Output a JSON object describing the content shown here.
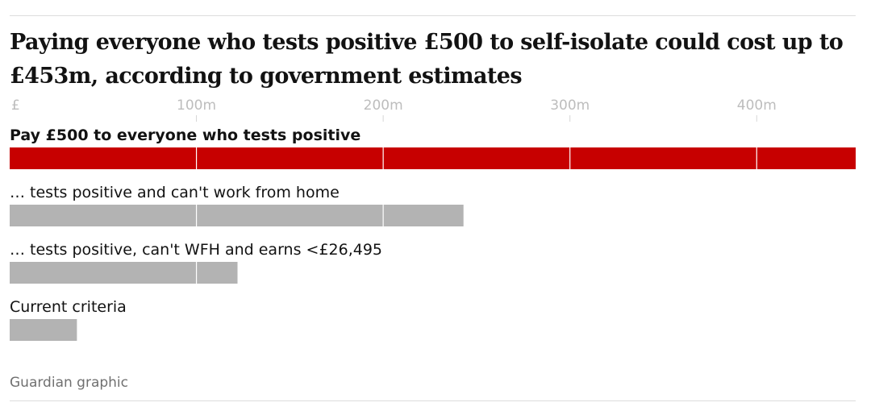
{
  "title": "Paying everyone who tests positive £500 to self-isolate could cost up to £453m, according to government estimates",
  "source": "Guardian graphic",
  "chart_data": {
    "type": "bar",
    "orientation": "horizontal",
    "title": "Paying everyone who tests positive £500 to self-isolate could cost up to £453m, according to government estimates",
    "xlabel": "",
    "ylabel": "",
    "xlim": [
      0,
      453
    ],
    "grid": true,
    "ticks": [
      {
        "value": 0,
        "label": "£"
      },
      {
        "value": 100,
        "label": "100m"
      },
      {
        "value": 200,
        "label": "200m"
      },
      {
        "value": 300,
        "label": "300m"
      },
      {
        "value": 400,
        "label": "400m"
      }
    ],
    "categories": [
      "Pay £500 to everyone who tests positive",
      "… tests positive and can't work from home",
      "… tests positive, can't WFH and earns <£26,495",
      "Current criteria"
    ],
    "values": [
      453,
      243,
      122,
      36
    ],
    "highlight_index": 0,
    "colors": {
      "highlight": "#c70000",
      "default": "#b3b3b3",
      "grid": "#ffffff",
      "tick": "#d6d6d6"
    }
  }
}
